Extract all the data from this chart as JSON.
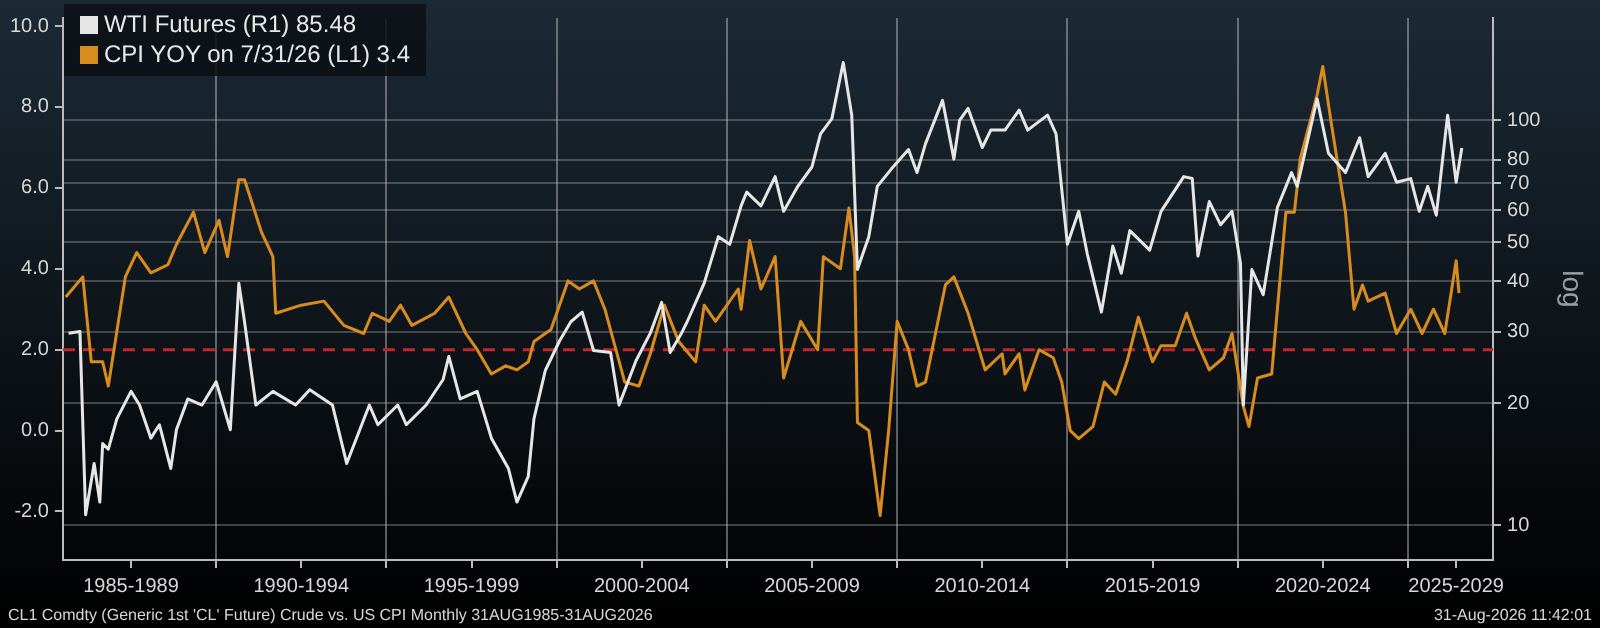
{
  "chart_data": {
    "type": "line",
    "xlim": [
      "1985-07",
      "2027-07"
    ],
    "xticks": [
      {
        "value": "1987-07",
        "label": "1985-1989"
      },
      {
        "value": "1990",
        "label": null
      },
      {
        "value": "1992-07",
        "label": "1990-1994"
      },
      {
        "value": "1995",
        "label": null
      },
      {
        "value": "1997-07",
        "label": "1995-1999"
      },
      {
        "value": "2000",
        "label": null
      },
      {
        "value": "2002-07",
        "label": "2000-2004"
      },
      {
        "value": "2005",
        "label": null
      },
      {
        "value": "2007-07",
        "label": "2005-2009"
      },
      {
        "value": "2010",
        "label": null
      },
      {
        "value": "2012-07",
        "label": "2010-2014"
      },
      {
        "value": "2015",
        "label": null
      },
      {
        "value": "2017-07",
        "label": "2015-2019"
      },
      {
        "value": "2020",
        "label": null
      },
      {
        "value": "2022-07",
        "label": "2020-2024"
      },
      {
        "value": "2025",
        "label": null
      },
      {
        "value": "2026-06",
        "label": "2025-2029"
      }
    ],
    "ylim": [
      -3.2,
      10.2
    ],
    "yticks": [
      {
        "value": -2,
        "label": "-2.0"
      },
      {
        "value": 0,
        "label": "0.0"
      },
      {
        "value": 2,
        "label": "2.0"
      },
      {
        "value": 4,
        "label": "4.0"
      },
      {
        "value": 6,
        "label": "6.0"
      },
      {
        "value": 8,
        "label": "8.0"
      },
      {
        "value": 10,
        "label": "10.0"
      }
    ],
    "y2lim": [
      8.2,
      179
    ],
    "y2ticks": [
      10,
      20,
      30,
      40,
      50,
      60,
      70,
      80,
      100
    ],
    "y2label": "log",
    "log": "y2",
    "grid": true,
    "legend": "top left",
    "ref_lines": [
      {
        "axis": "y",
        "value": 2,
        "color": "#c0282a",
        "line_style": "dashed"
      }
    ],
    "annotations": [
      "CL1 Comdty (Generic 1st 'CL' Future) Crude vs. US CPI Monthly 31AUG1985-31AUG2026",
      "31-Aug-2026 11:42:01"
    ],
    "series": [
      {
        "name": "WTI Futures (R1) 85.48",
        "color": "#e6e6e6",
        "axis": "y2",
        "x": [
          "1985-09",
          "1986-01",
          "1986-03",
          "1986-06",
          "1986-08",
          "1986-09",
          "1986-11",
          "1987-02",
          "1987-07",
          "1987-10",
          "1988-02",
          "1988-05",
          "1988-09",
          "1988-11",
          "1989-03",
          "1989-08",
          "1990-01",
          "1990-06",
          "1990-09",
          "1990-11",
          "1991-03",
          "1991-09",
          "1992-05",
          "1992-10",
          "1993-06",
          "1993-11",
          "1994-07",
          "1994-10",
          "1995-05",
          "1995-08",
          "1996-03",
          "1996-09",
          "1996-11",
          "1997-03",
          "1997-09",
          "1998-02",
          "1998-08",
          "1998-11",
          "1999-03",
          "1999-05",
          "1999-09",
          "2000-02",
          "2000-06",
          "2000-10",
          "2001-02",
          "2001-08",
          "2001-11",
          "2002-05",
          "2002-10",
          "2003-02",
          "2003-05",
          "2003-09",
          "2003-11",
          "2004-05",
          "2004-10",
          "2005-02",
          "2005-06",
          "2005-08",
          "2006-01",
          "2006-06",
          "2006-09",
          "2007-02",
          "2007-07",
          "2007-10",
          "2008-02",
          "2008-06",
          "2008-09",
          "2008-11",
          "2009-03",
          "2009-06",
          "2009-11",
          "2010-05",
          "2010-08",
          "2010-11",
          "2011-05",
          "2011-09",
          "2011-11",
          "2012-02",
          "2012-07",
          "2012-10",
          "2013-03",
          "2013-08",
          "2013-11",
          "2014-06",
          "2014-09",
          "2015-01",
          "2015-05",
          "2015-08",
          "2016-01",
          "2016-05",
          "2016-08",
          "2016-11",
          "2017-06",
          "2017-10",
          "2018-06",
          "2018-09",
          "2018-11",
          "2019-03",
          "2019-07",
          "2019-11",
          "2020-02",
          "2020-03",
          "2020-06",
          "2020-10",
          "2021-03",
          "2021-08",
          "2021-10",
          "2022-05",
          "2022-09",
          "2023-03",
          "2023-08",
          "2023-11",
          "2024-05",
          "2024-09",
          "2025-02",
          "2025-05",
          "2025-08",
          "2025-11",
          "2026-03",
          "2026-06",
          "2026-08"
        ],
        "values": [
          29.8,
          30.1,
          10.6,
          14.2,
          11.4,
          15.9,
          15.4,
          18.3,
          21.4,
          19.8,
          16.4,
          17.7,
          13.8,
          17.2,
          20.5,
          19.8,
          22.6,
          17.2,
          39.6,
          31.8,
          19.8,
          21.4,
          19.8,
          21.6,
          19.8,
          14.2,
          19.8,
          17.7,
          19.8,
          17.7,
          19.8,
          22.9,
          26.1,
          20.5,
          21.4,
          16.4,
          13.8,
          11.4,
          13.2,
          18.3,
          24.1,
          28.5,
          31.8,
          33.6,
          27.0,
          26.7,
          19.8,
          25.5,
          29.8,
          35.5,
          26.7,
          29.8,
          31.8,
          39.6,
          51.6,
          49.4,
          61.5,
          66.5,
          61.5,
          72.6,
          59.6,
          68.7,
          76.8,
          92.6,
          101,
          139,
          103,
          42.8,
          51.6,
          68.7,
          75.9,
          84.7,
          74.3,
          87.6,
          112,
          80.2,
          100,
          107,
          85.7,
          94.6,
          94.6,
          106,
          94.6,
          103,
          92.6,
          49.4,
          59.6,
          46.8,
          33.6,
          48.9,
          41.9,
          53.4,
          47.8,
          59.6,
          72.6,
          71.8,
          46.2,
          63.0,
          55.2,
          59.6,
          44.3,
          19.8,
          42.8,
          37.1,
          60.9,
          74.3,
          68.7,
          113,
          82.9,
          74.3,
          90.6,
          72.6,
          82.9,
          70.3,
          71.8,
          59.6,
          68.7,
          58.3,
          103,
          70.3,
          85.48
        ]
      },
      {
        "name": "CPI YOY on 7/31/26 (L1) 3.4",
        "color": "#d98c1e",
        "x": [
          "1985-08",
          "1986-02",
          "1986-05",
          "1986-09",
          "1986-11",
          "1987-05",
          "1987-09",
          "1988-02",
          "1988-08",
          "1988-11",
          "1989-05",
          "1989-09",
          "1990-02",
          "1990-05",
          "1990-09",
          "1990-11",
          "1991-05",
          "1991-09",
          "1991-10",
          "1992-07",
          "1993-03",
          "1993-10",
          "1994-05",
          "1994-08",
          "1995-02",
          "1995-06",
          "1995-10",
          "1996-06",
          "1996-11",
          "1997-05",
          "1997-09",
          "1998-02",
          "1998-07",
          "1998-11",
          "1999-03",
          "1999-05",
          "1999-11",
          "2000-05",
          "2000-09",
          "2001-02",
          "2001-06",
          "2002-01",
          "2002-06",
          "2002-10",
          "2003-03",
          "2003-08",
          "2004-02",
          "2004-05",
          "2004-09",
          "2005-05",
          "2005-06",
          "2005-09",
          "2006-01",
          "2006-06",
          "2006-09",
          "2007-03",
          "2007-09",
          "2007-11",
          "2008-05",
          "2008-08",
          "2008-10",
          "2008-11",
          "2009-03",
          "2009-07",
          "2009-10",
          "2010-01",
          "2010-05",
          "2010-08",
          "2010-11",
          "2011-06",
          "2011-09",
          "2012-02",
          "2012-08",
          "2013-02",
          "2013-03",
          "2013-08",
          "2013-10",
          "2014-03",
          "2014-08",
          "2014-11",
          "2015-02",
          "2015-05",
          "2015-10",
          "2016-02",
          "2016-06",
          "2016-10",
          "2017-02",
          "2017-07",
          "2017-10",
          "2018-03",
          "2018-07",
          "2018-10",
          "2019-03",
          "2019-08",
          "2019-11",
          "2020-03",
          "2020-05",
          "2020-08",
          "2021-01",
          "2021-06",
          "2021-09",
          "2021-11",
          "2022-05",
          "2022-07",
          "2022-10",
          "2023-03",
          "2023-06",
          "2023-09",
          "2023-11",
          "2024-05",
          "2024-09",
          "2025-02",
          "2025-06",
          "2025-10",
          "2026-02",
          "2026-06",
          "2026-07"
        ],
        "values": [
          3.3,
          3.8,
          1.7,
          1.7,
          1.1,
          3.8,
          4.4,
          3.9,
          4.1,
          4.6,
          5.4,
          4.4,
          5.2,
          4.3,
          6.2,
          6.2,
          4.9,
          4.3,
          2.9,
          3.1,
          3.2,
          2.6,
          2.4,
          2.9,
          2.7,
          3.1,
          2.6,
          2.9,
          3.3,
          2.4,
          2.0,
          1.4,
          1.6,
          1.5,
          1.7,
          2.2,
          2.5,
          3.7,
          3.5,
          3.7,
          3.0,
          1.2,
          1.1,
          1.9,
          3.1,
          2.2,
          1.7,
          3.1,
          2.7,
          3.5,
          3.0,
          4.7,
          3.5,
          4.3,
          1.3,
          2.7,
          2.0,
          4.3,
          4.0,
          5.5,
          4.3,
          0.2,
          0.0,
          -2.1,
          0.0,
          2.7,
          2.0,
          1.1,
          1.2,
          3.6,
          3.8,
          2.9,
          1.5,
          1.9,
          1.4,
          1.9,
          1.0,
          2.0,
          1.8,
          1.2,
          0.0,
          -0.2,
          0.1,
          1.2,
          0.9,
          1.7,
          2.8,
          1.7,
          2.1,
          2.1,
          2.9,
          2.3,
          1.5,
          1.8,
          2.4,
          0.6,
          0.1,
          1.3,
          1.4,
          5.4,
          5.4,
          6.7,
          8.3,
          9.0,
          7.6,
          5.4,
          3.0,
          3.6,
          3.2,
          3.4,
          2.4,
          3.0,
          2.4,
          3.0,
          2.4,
          4.2,
          3.4
        ]
      }
    ]
  }
}
